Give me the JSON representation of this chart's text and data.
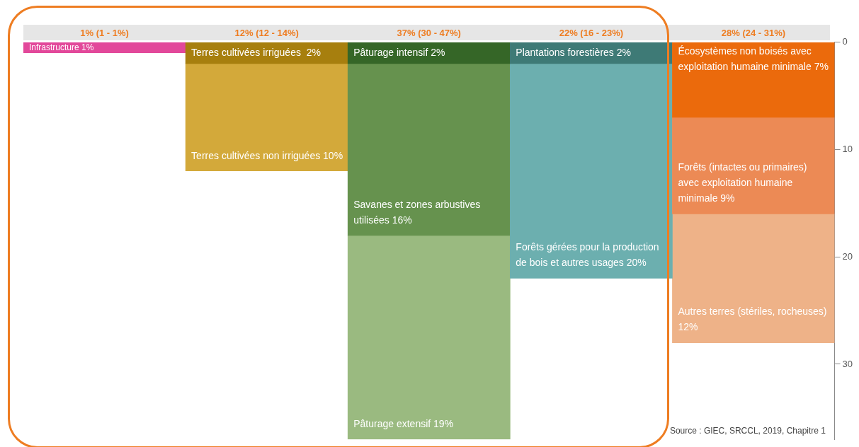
{
  "chart_data": {
    "type": "bar",
    "stacked": true,
    "categories": [
      "1% (1 - 1%)",
      "12% (12 - 14%)",
      "37% (30 - 47%)",
      "22% (16 - 23%)",
      "28% (24 - 31%)"
    ],
    "series": [
      {
        "colors": [
          "#e2489a",
          "#a77f0e",
          "#356627",
          "#3e7a76",
          "#eb6a0c"
        ],
        "values": [
          1,
          2,
          2,
          2,
          7
        ],
        "value_labels": [
          "Infrastructure 1%",
          "Terres cultivées irriguées  2%",
          "Pâturage intensif 2%",
          "Plantations forestières 2%",
          "Écosystèmes non boisés avec exploitation humaine minimale 7%"
        ]
      },
      {
        "colors": [
          "#d3a93a",
          "#d3a93a",
          "#66924e",
          "#6cafaf",
          "#ec8a55"
        ],
        "values": [
          null,
          10,
          16,
          20,
          9
        ],
        "value_labels": [
          null,
          "Terres cultivées non irriguées 10%",
          "Savanes et zones arbustives utilisées 16%",
          "Forêts gérées pour la production de bois et autres usages 20%",
          "Forêts (intactes ou primaires) avec exploitation humaine minimale 9%"
        ]
      },
      {
        "colors": [
          "#9aba80",
          "#9aba80",
          "#9aba80",
          "#9aba80",
          "#eeb288"
        ],
        "values": [
          null,
          null,
          19,
          null,
          12
        ],
        "value_labels": [
          null,
          null,
          "Pâturage extensif 19%",
          null,
          "Autres terres (stériles, rocheuses)  12%"
        ]
      }
    ],
    "ylim": [
      37,
      0
    ],
    "yticks": [
      0,
      10,
      20,
      30
    ],
    "legend": false,
    "annotations": [
      "Source : GIEC, SRCCL, 2019, Chapitre 1"
    ]
  }
}
